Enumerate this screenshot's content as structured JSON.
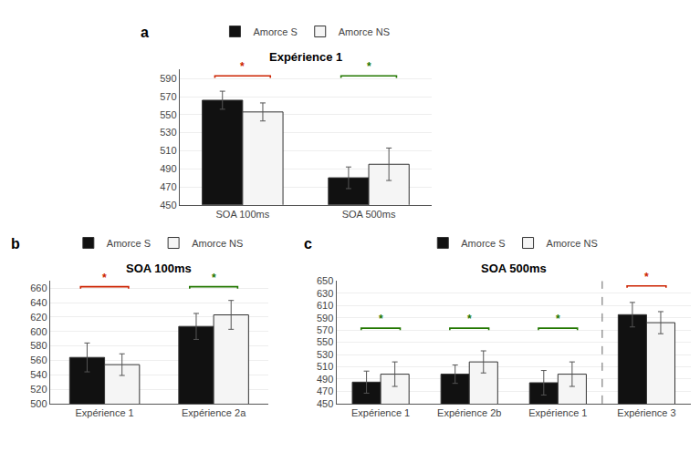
{
  "chart_data": [
    {
      "type": "bar",
      "panel_label": "a",
      "title": "Expérience 1",
      "categories": [
        "SOA 100ms",
        "SOA 500ms"
      ],
      "series": [
        {
          "name": "Amorce S",
          "color": "#111111",
          "values": [
            566,
            480
          ],
          "errors": [
            10,
            12
          ]
        },
        {
          "name": "Amorce NS",
          "color": "#f5f5f5",
          "values": [
            553,
            495
          ],
          "errors": [
            10,
            18
          ]
        }
      ],
      "ylim": [
        450,
        600
      ],
      "yticks": [
        450,
        470,
        490,
        510,
        530,
        550,
        570,
        590
      ],
      "grid": true,
      "legend": "top",
      "annotations": [
        {
          "text": "*",
          "x": 0,
          "y": 593,
          "color": "#cc2200"
        },
        {
          "text": "*",
          "x": 1,
          "y": 593,
          "color": "#227700"
        }
      ]
    },
    {
      "type": "bar",
      "panel_label": "b",
      "title": "SOA 100ms",
      "categories": [
        "Expérience 1",
        "Expérience 2a"
      ],
      "series": [
        {
          "name": "Amorce S",
          "color": "#111111",
          "values": [
            564,
            607
          ],
          "errors": [
            20,
            18
          ]
        },
        {
          "name": "Amorce NS",
          "color": "#f5f5f5",
          "values": [
            554,
            623
          ],
          "errors": [
            15,
            20
          ]
        }
      ],
      "ylim": [
        500,
        670
      ],
      "yticks": [
        500,
        520,
        540,
        560,
        580,
        600,
        620,
        640,
        660
      ],
      "grid": true,
      "legend": "top",
      "annotations": [
        {
          "text": "*",
          "x": 0,
          "y": 662,
          "color": "#cc2200"
        },
        {
          "text": "*",
          "x": 1,
          "y": 662,
          "color": "#227700"
        }
      ]
    },
    {
      "type": "bar",
      "panel_label": "c",
      "title": "SOA 500ms",
      "categories": [
        "Expérience 1",
        "Expérience 2b",
        "Expérience 1",
        "Expérience 3"
      ],
      "series": [
        {
          "name": "Amorce S",
          "color": "#111111",
          "values": [
            485,
            498,
            484,
            595
          ],
          "errors": [
            18,
            15,
            20,
            20
          ]
        },
        {
          "name": "Amorce NS",
          "color": "#f5f5f5",
          "values": [
            498,
            518,
            498,
            582
          ],
          "errors": [
            20,
            18,
            20,
            18
          ]
        }
      ],
      "ylim": [
        450,
        650
      ],
      "yticks": [
        450,
        470,
        490,
        510,
        530,
        550,
        570,
        590,
        610,
        630,
        650
      ],
      "grid": true,
      "legend": "top",
      "vline": 2.5,
      "annotations": [
        {
          "text": "*",
          "x": 3,
          "y": 642,
          "color": "#cc2200"
        },
        {
          "text": "*",
          "x": 0,
          "y": 573,
          "color": "#227700"
        },
        {
          "text": "*",
          "x": 1,
          "y": 573,
          "color": "#227700"
        },
        {
          "text": "*",
          "x": 2,
          "y": 573,
          "color": "#227700"
        }
      ]
    }
  ]
}
